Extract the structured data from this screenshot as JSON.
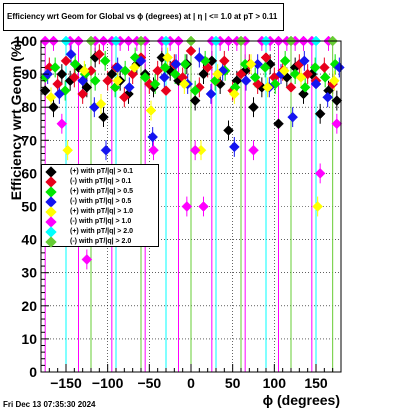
{
  "title": "Efficiency wrt Geom for Global vs ϕ (degrees) at |  η  | <= 1.0 at pT > 0.11",
  "footer": "Fri Dec 13 07:35:30 2024",
  "chart_data": {
    "type": "scatter",
    "xlabel": "ϕ (degrees)",
    "ylabel": "Efficiency wrt Geom (%)",
    "xlim": [
      -180,
      180
    ],
    "ylim": [
      0,
      100
    ],
    "xticks": [
      -150,
      -100,
      -50,
      0,
      50,
      100,
      150
    ],
    "yticks": [
      0,
      10,
      20,
      30,
      40,
      50,
      60,
      70,
      80,
      90,
      100
    ],
    "grid": true,
    "legend_position": "left-middle",
    "series": [
      {
        "name": "(+) with pT/|q| > 0.1",
        "color": "#000000",
        "x": [
          -175,
          -165,
          -155,
          -145,
          -135,
          -125,
          -115,
          -105,
          -95,
          -85,
          -75,
          -65,
          -55,
          -45,
          -35,
          -25,
          -15,
          -5,
          5,
          15,
          25,
          35,
          45,
          55,
          65,
          75,
          85,
          95,
          105,
          115,
          125,
          135,
          145,
          155,
          165,
          175
        ],
        "y": [
          85,
          80,
          90,
          88,
          92,
          86,
          95,
          77,
          90,
          88,
          84,
          93,
          90,
          86,
          95,
          91,
          88,
          93,
          82,
          90,
          94,
          87,
          73,
          88,
          91,
          80,
          86,
          93,
          75,
          89,
          92,
          84,
          90,
          78,
          85,
          82
        ]
      },
      {
        "name": "(-) with pT/|q| > 0.1",
        "color": "#e8001c",
        "x": [
          -170,
          -160,
          -150,
          -140,
          -130,
          -120,
          -110,
          -100,
          -90,
          -80,
          -70,
          -60,
          -50,
          -40,
          -30,
          -20,
          -10,
          0,
          10,
          20,
          30,
          40,
          50,
          60,
          70,
          80,
          90,
          100,
          110,
          120,
          130,
          140,
          150,
          160,
          170
        ],
        "y": [
          92,
          87,
          94,
          89,
          84,
          91,
          96,
          88,
          92,
          83,
          90,
          95,
          87,
          91,
          85,
          93,
          89,
          97,
          86,
          92,
          88,
          94,
          85,
          90,
          93,
          87,
          95,
          89,
          91,
          86,
          93,
          90,
          88,
          92,
          87
        ]
      },
      {
        "name": "(+) with pT/|q| > 0.5",
        "color": "#00e600",
        "x": [
          -175,
          -163,
          -151,
          -139,
          -127,
          -115,
          -103,
          -91,
          -79,
          -67,
          -55,
          -43,
          -31,
          -19,
          -7,
          5,
          17,
          29,
          41,
          53,
          65,
          77,
          89,
          101,
          113,
          125,
          137,
          149,
          161,
          173
        ],
        "y": [
          89,
          92,
          85,
          93,
          90,
          88,
          94,
          86,
          91,
          95,
          89,
          87,
          92,
          90,
          93,
          85,
          94,
          88,
          91,
          86,
          93,
          89,
          92,
          87,
          94,
          90,
          86,
          92,
          89,
          93
        ]
      },
      {
        "name": "(-) with pT/|q| > 0.5",
        "color": "#1414f0",
        "x": [
          -172,
          -158,
          -144,
          -130,
          -116,
          -102,
          -88,
          -74,
          -60,
          -46,
          -32,
          -18,
          -4,
          10,
          24,
          38,
          52,
          66,
          80,
          94,
          108,
          122,
          136,
          150,
          164,
          178
        ],
        "y": [
          90,
          84,
          96,
          88,
          80,
          67,
          92,
          86,
          94,
          71,
          89,
          93,
          87,
          95,
          84,
          91,
          68,
          88,
          93,
          86,
          90,
          77,
          94,
          87,
          83,
          92
        ]
      },
      {
        "name": "(+) with pT/|q| > 1.0",
        "color": "#ffff00",
        "x": [
          -168,
          -148,
          -128,
          -108,
          -88,
          -68,
          -48,
          -28,
          -8,
          12,
          32,
          52,
          72,
          92,
          112,
          132,
          152,
          172
        ],
        "y": [
          83,
          67,
          91,
          81,
          88,
          92,
          79,
          95,
          87,
          67,
          90,
          84,
          93,
          86,
          91,
          89,
          50,
          88
        ]
      },
      {
        "name": "(-) with pT/|q| > 1.0",
        "color": "#ff00ff",
        "x": [
          -175,
          -165,
          -155,
          -145,
          -135,
          -125,
          -115,
          -105,
          -95,
          -85,
          -75,
          -65,
          -55,
          -45,
          -35,
          -25,
          -15,
          -5,
          5,
          15,
          25,
          35,
          45,
          55,
          65,
          75,
          85,
          95,
          105,
          115,
          125,
          135,
          145,
          155,
          165,
          175
        ],
        "y": [
          100,
          100,
          75,
          100,
          100,
          34,
          100,
          100,
          100,
          100,
          100,
          100,
          100,
          67,
          100,
          100,
          100,
          50,
          67,
          50,
          100,
          100,
          100,
          100,
          100,
          67,
          100,
          100,
          100,
          100,
          100,
          100,
          100,
          60,
          100,
          75
        ]
      },
      {
        "name": "(+) with pT/|q| > 2.0",
        "color": "#00ffff",
        "x": [
          -150,
          -90,
          -30,
          30,
          90,
          150
        ],
        "y": [
          100,
          100,
          100,
          100,
          100,
          100
        ]
      },
      {
        "name": "(-) with pT/|q| > 2.0",
        "color": "#66cc33",
        "x": [
          -120,
          -60,
          0,
          60,
          120,
          170
        ],
        "y": [
          100,
          100,
          100,
          100,
          100,
          100
        ]
      }
    ]
  }
}
